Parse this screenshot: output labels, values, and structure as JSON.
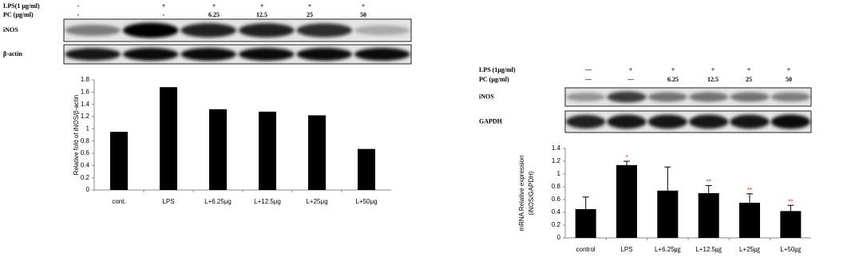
{
  "chart_data": [
    {
      "type": "bar",
      "y_label": "Relative fold of iNOS/β-actin",
      "categories": [
        "cont.",
        "LPS",
        "L+6.25μg",
        "L+12.5μg",
        "L+25μg",
        "L+50μg"
      ],
      "values": [
        0.95,
        1.68,
        1.32,
        1.28,
        1.22,
        0.67
      ],
      "color": "#000000",
      "ylim": [
        0,
        1.8
      ],
      "yticks": [
        0,
        0.2,
        0.4,
        0.6,
        0.8,
        1,
        1.2,
        1.4,
        1.6,
        1.8
      ]
    },
    {
      "type": "bar",
      "y_label": [
        "mRNA Relative expression",
        "(iNOS/GAPDH)"
      ],
      "categories": [
        "control",
        "LPS",
        "L+6.25㎍",
        "L+12.5㎍",
        "L+25㎍",
        "L+50㎍"
      ],
      "values": [
        0.45,
        1.14,
        0.74,
        0.7,
        0.55,
        0.42
      ],
      "errors": [
        0.19,
        0.06,
        0.37,
        0.12,
        0.14,
        0.09
      ],
      "significance": [
        null,
        "*",
        null,
        "**",
        "**",
        "**"
      ],
      "significance_color": "#e02020",
      "color": "#000000",
      "ylim": [
        0,
        1.4
      ],
      "yticks": [
        0,
        0.2,
        0.4,
        0.6,
        0.8,
        1,
        1.2,
        1.4
      ]
    }
  ],
  "blots": [
    {
      "rows": [
        {
          "label": "LPS(1 μg/ml)",
          "cells": [
            "-",
            "+",
            "+",
            "+",
            "+",
            "+"
          ]
        },
        {
          "label": "PC (μg/ml)",
          "cells": [
            "-",
            "-",
            "6.25",
            "12.5",
            "25",
            "50"
          ]
        }
      ],
      "bands": [
        "iNOS",
        "β-actin"
      ]
    },
    {
      "rows": [
        {
          "label": "LPS (1μg/ml)",
          "cells": [
            "—",
            "+",
            "+",
            "+",
            "+",
            "+"
          ]
        },
        {
          "label": "PC  (μg/ml)",
          "cells": [
            "—",
            "—",
            "6.25",
            "12.5",
            "25",
            "50"
          ]
        }
      ],
      "bands": [
        "iNOS",
        "GAPDH"
      ]
    }
  ]
}
